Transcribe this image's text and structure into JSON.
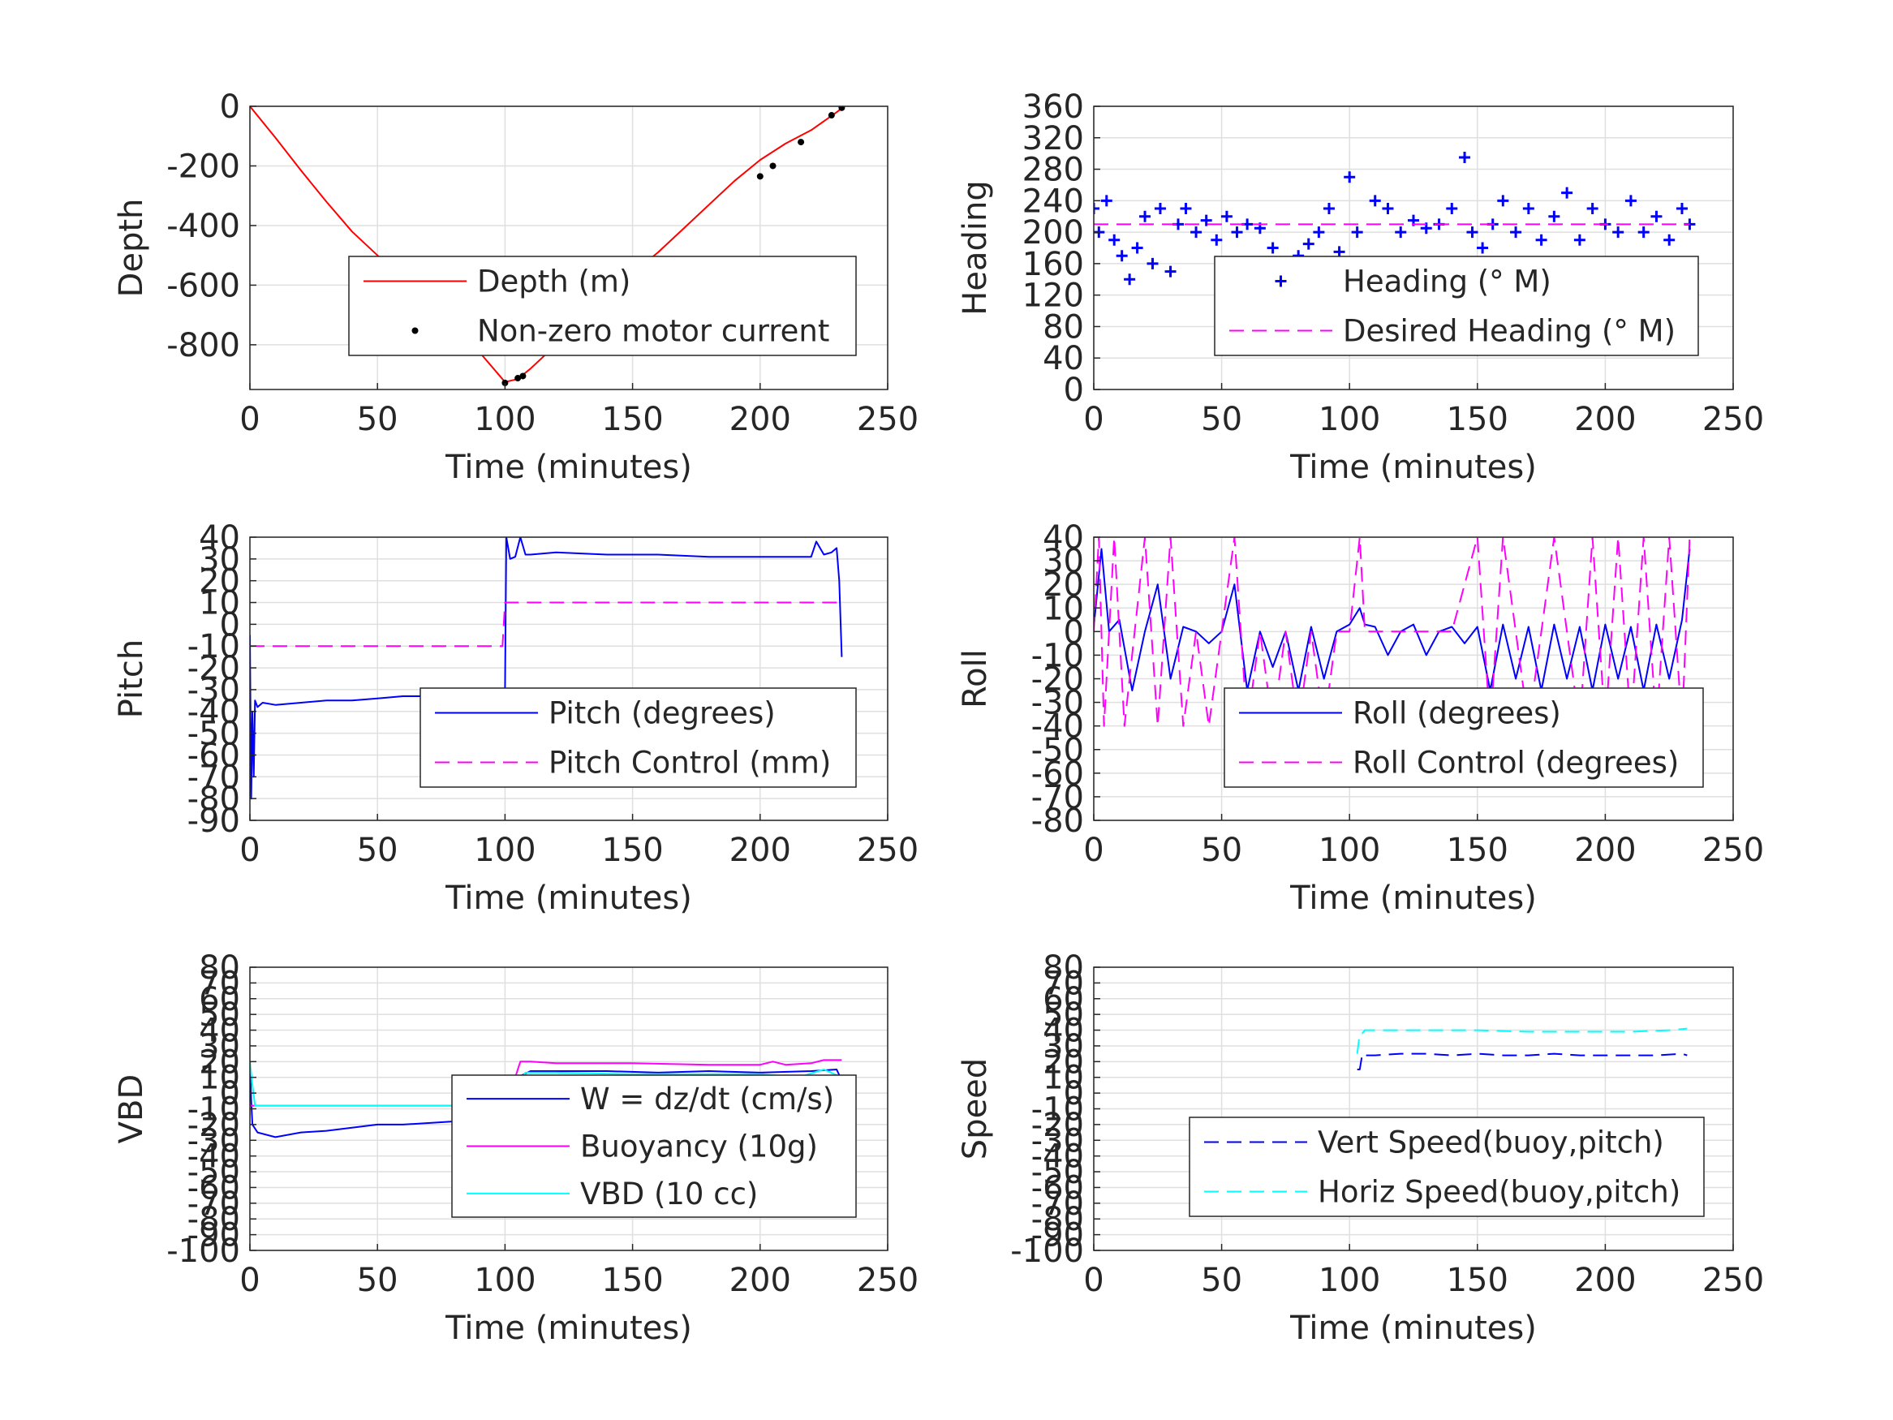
{
  "chart_data": [
    {
      "id": "depth",
      "type": "line",
      "xlabel": "Time (minutes)",
      "ylabel": "Depth",
      "xlim": [
        0,
        250
      ],
      "ylim": [
        -950,
        0
      ],
      "xticks": [
        0,
        50,
        100,
        150,
        200,
        250
      ],
      "yticks": [
        0,
        -200,
        -400,
        -600,
        -800
      ],
      "grid": true,
      "legend": {
        "placement": "center-right",
        "entries": [
          "Depth (m)",
          "Non-zero motor current"
        ]
      },
      "series": [
        {
          "name": "Depth (m)",
          "style": "line",
          "color": "#ff0000",
          "x": [
            0,
            10,
            20,
            30,
            40,
            50,
            60,
            70,
            80,
            90,
            100,
            105,
            110,
            120,
            130,
            140,
            150,
            160,
            170,
            180,
            190,
            200,
            210,
            220,
            230,
            233
          ],
          "y": [
            0,
            -105,
            -215,
            -320,
            -420,
            -500,
            -580,
            -660,
            -740,
            -825,
            -925,
            -915,
            -880,
            -800,
            -720,
            -640,
            -560,
            -490,
            -410,
            -330,
            -250,
            -180,
            -125,
            -80,
            -20,
            0
          ]
        },
        {
          "name": "Non-zero motor current",
          "style": "markers",
          "color": "#000000",
          "x": [
            100,
            105,
            107,
            200,
            205,
            216,
            228,
            232
          ],
          "y": [
            -928,
            -912,
            -905,
            -235,
            -200,
            -120,
            -30,
            -5
          ]
        }
      ]
    },
    {
      "id": "heading",
      "type": "line",
      "xlabel": "Time (minutes)",
      "ylabel": "Heading",
      "xlim": [
        0,
        250
      ],
      "ylim": [
        0,
        360
      ],
      "xticks": [
        0,
        50,
        100,
        150,
        200,
        250
      ],
      "yticks": [
        0,
        40,
        80,
        120,
        160,
        200,
        240,
        280,
        320,
        360
      ],
      "grid": true,
      "legend": {
        "placement": "lower-right",
        "entries": [
          "Heading (° M)",
          "Desired Heading (° M)"
        ]
      },
      "series": [
        {
          "name": "Heading (° M)",
          "style": "plus-markers",
          "color": "#0000ff",
          "x": [
            0,
            2,
            5,
            8,
            11,
            14,
            17,
            20,
            23,
            26,
            30,
            33,
            36,
            40,
            44,
            48,
            52,
            56,
            60,
            65,
            70,
            75,
            80,
            84,
            88,
            92,
            96,
            100,
            103,
            106,
            110,
            115,
            120,
            125,
            130,
            135,
            140,
            145,
            148,
            152,
            156,
            160,
            165,
            170,
            175,
            180,
            185,
            190,
            195,
            200,
            205,
            210,
            215,
            220,
            225,
            230,
            233
          ],
          "y": [
            230,
            200,
            240,
            190,
            170,
            140,
            180,
            220,
            160,
            230,
            150,
            210,
            230,
            200,
            215,
            190,
            220,
            200,
            210,
            205,
            180,
            160,
            170,
            185,
            200,
            230,
            175,
            270,
            200,
            160,
            240,
            230,
            200,
            215,
            205,
            210,
            230,
            295,
            200,
            180,
            210,
            240,
            200,
            230,
            190,
            220,
            250,
            190,
            230,
            210,
            200,
            240,
            200,
            220,
            190,
            230,
            210
          ]
        },
        {
          "name": "Desired Heading (° M)",
          "style": "dashed",
          "color": "#ff00ff",
          "x": [
            0,
            233
          ],
          "y": [
            210,
            210
          ]
        }
      ]
    },
    {
      "id": "pitch",
      "type": "line",
      "xlabel": "Time (minutes)",
      "ylabel": "Pitch",
      "xlim": [
        0,
        250
      ],
      "ylim": [
        -90,
        40
      ],
      "xticks": [
        0,
        50,
        100,
        150,
        200,
        250
      ],
      "yticks": [
        40,
        30,
        20,
        10,
        0,
        -10,
        -20,
        -30,
        -40,
        -50,
        -60,
        -70,
        -80,
        -90
      ],
      "grid": true,
      "legend": {
        "placement": "lower-right",
        "entries": [
          "Pitch (degrees)",
          "Pitch Control (mm)"
        ]
      },
      "series": [
        {
          "name": "Pitch (degrees)",
          "style": "line",
          "color": "#0000ff",
          "x": [
            0,
            0.5,
            1,
            1.5,
            2,
            3,
            5,
            10,
            20,
            30,
            40,
            50,
            60,
            70,
            80,
            90,
            99,
            100,
            100.5,
            102,
            104,
            106,
            108,
            110,
            120,
            140,
            160,
            180,
            200,
            210,
            220,
            222,
            225,
            228,
            230,
            231,
            232
          ],
          "y": [
            -5,
            -80,
            -40,
            -70,
            -35,
            -38,
            -36,
            -37,
            -36,
            -35,
            -35,
            -34,
            -33,
            -33,
            -32,
            -32,
            -32,
            -30,
            40,
            30,
            31,
            40,
            32,
            32,
            33,
            32,
            32,
            31,
            31,
            31,
            31,
            38,
            32,
            33,
            35,
            20,
            -15
          ]
        },
        {
          "name": "Pitch Control (mm)",
          "style": "dashed",
          "color": "#ff00ff",
          "x": [
            0,
            1,
            50,
            99,
            100,
            150,
            200,
            232
          ],
          "y": [
            -10,
            -10,
            -10,
            -10,
            10,
            10,
            10,
            10
          ]
        }
      ]
    },
    {
      "id": "roll",
      "type": "line",
      "xlabel": "Time (minutes)",
      "ylabel": "Roll",
      "xlim": [
        0,
        250
      ],
      "ylim": [
        -80,
        40
      ],
      "xticks": [
        0,
        50,
        100,
        150,
        200,
        250
      ],
      "yticks": [
        40,
        30,
        20,
        10,
        0,
        -10,
        -20,
        -30,
        -40,
        -50,
        -60,
        -70,
        -80
      ],
      "grid": true,
      "legend": {
        "placement": "lower-right",
        "entries": [
          "Roll (degrees)",
          "Roll Control (degrees)"
        ]
      },
      "series": [
        {
          "name": "Roll (degrees)",
          "style": "line",
          "color": "#0000ff",
          "x": [
            0,
            3,
            6,
            10,
            15,
            20,
            25,
            30,
            35,
            40,
            45,
            50,
            55,
            60,
            65,
            70,
            75,
            80,
            85,
            90,
            95,
            100,
            104,
            106,
            110,
            115,
            120,
            125,
            130,
            135,
            140,
            145,
            150,
            155,
            160,
            165,
            170,
            175,
            180,
            185,
            190,
            195,
            200,
            205,
            210,
            215,
            220,
            225,
            230,
            233
          ],
          "y": [
            2,
            35,
            0,
            5,
            -25,
            0,
            20,
            -20,
            2,
            0,
            -5,
            0,
            20,
            -25,
            0,
            -15,
            0,
            -25,
            2,
            -20,
            0,
            3,
            10,
            3,
            2,
            -10,
            0,
            3,
            -10,
            0,
            2,
            -5,
            2,
            -25,
            3,
            -20,
            2,
            -25,
            3,
            -20,
            2,
            -25,
            3,
            -20,
            2,
            -25,
            3,
            -20,
            5,
            35
          ]
        },
        {
          "name": "Roll Control (degrees)",
          "style": "dashed",
          "color": "#ff00ff",
          "x": [
            0,
            2,
            4,
            8,
            12,
            16,
            20,
            25,
            30,
            35,
            40,
            45,
            50,
            55,
            60,
            65,
            70,
            75,
            80,
            85,
            90,
            95,
            100,
            104,
            106,
            110,
            120,
            130,
            140,
            150,
            155,
            160,
            170,
            180,
            190,
            195,
            200,
            205,
            210,
            215,
            220,
            225,
            230,
            233
          ],
          "y": [
            0,
            40,
            -40,
            40,
            -40,
            0,
            40,
            -40,
            40,
            -40,
            0,
            -40,
            0,
            40,
            -40,
            0,
            -40,
            0,
            -40,
            0,
            -40,
            0,
            0,
            40,
            0,
            0,
            0,
            0,
            0,
            40,
            -40,
            40,
            -40,
            40,
            -40,
            40,
            -40,
            40,
            -40,
            40,
            -40,
            40,
            -40,
            40
          ]
        }
      ]
    },
    {
      "id": "vbd",
      "type": "line",
      "xlabel": "Time (minutes)",
      "ylabel": "VBD",
      "xlim": [
        0,
        250
      ],
      "ylim": [
        -100,
        80
      ],
      "xticks": [
        0,
        50,
        100,
        150,
        200,
        250
      ],
      "yticks": [
        80,
        70,
        60,
        50,
        40,
        30,
        20,
        10,
        0,
        -10,
        -20,
        -30,
        -40,
        -50,
        -60,
        -70,
        -80,
        -90,
        -100
      ],
      "grid": true,
      "legend": {
        "placement": "center-right",
        "entries": [
          "W = dz/dt (cm/s)",
          "Buoyancy (10g)",
          "VBD (10 cc)"
        ]
      },
      "series": [
        {
          "name": "W = dz/dt (cm/s)",
          "style": "line",
          "color": "#0000ff",
          "x": [
            0,
            0.5,
            1,
            3,
            10,
            20,
            30,
            40,
            50,
            60,
            70,
            80,
            90,
            100,
            101,
            103,
            105,
            110,
            120,
            140,
            160,
            180,
            200,
            220,
            230,
            232
          ],
          "y": [
            20,
            -5,
            -20,
            -25,
            -28,
            -25,
            -24,
            -22,
            -20,
            -20,
            -19,
            -18,
            -17,
            -15,
            4,
            5,
            10,
            14,
            14,
            14,
            13,
            14,
            13,
            14,
            15,
            8
          ]
        },
        {
          "name": "Buoyancy (10g)",
          "style": "line",
          "color": "#ff00ff",
          "x": [
            0,
            100,
            104,
            106,
            110,
            120,
            150,
            180,
            200,
            205,
            210,
            220,
            225,
            232
          ],
          "y": [
            -8,
            -8,
            10,
            20,
            20,
            19,
            19,
            18,
            18,
            20,
            18,
            19,
            21,
            21
          ]
        },
        {
          "name": "VBD (10 cc)",
          "style": "line",
          "color": "#00ffff",
          "x": [
            0,
            1,
            2,
            3,
            100,
            102,
            104,
            106,
            108,
            120,
            150,
            200,
            215,
            225,
            232
          ],
          "y": [
            20,
            5,
            -8,
            -8,
            -8,
            5,
            8,
            8,
            13,
            13,
            12,
            12,
            10,
            15,
            10
          ]
        }
      ]
    },
    {
      "id": "speed",
      "type": "line",
      "xlabel": "Time (minutes)",
      "ylabel": "Speed",
      "xlim": [
        0,
        250
      ],
      "ylim": [
        -100,
        80
      ],
      "xticks": [
        0,
        50,
        100,
        150,
        200,
        250
      ],
      "yticks": [
        80,
        70,
        60,
        50,
        40,
        30,
        20,
        10,
        0,
        -10,
        -20,
        -30,
        -40,
        -50,
        -60,
        -70,
        -80,
        -90,
        -100
      ],
      "grid": true,
      "legend": {
        "placement": "lower-right",
        "entries": [
          "Vert Speed(buoy,pitch)",
          "Horiz Speed(buoy,pitch)"
        ]
      },
      "series": [
        {
          "name": "Vert Speed(buoy,pitch)",
          "style": "dashed",
          "color": "#0000ff",
          "x": [
            103,
            104,
            105,
            106,
            110,
            120,
            130,
            140,
            150,
            160,
            170,
            180,
            190,
            200,
            210,
            220,
            230,
            232
          ],
          "y": [
            15,
            15,
            25,
            24,
            24,
            25,
            25,
            24,
            25,
            24,
            24,
            25,
            24,
            24,
            24,
            24,
            25,
            24
          ]
        },
        {
          "name": "Horiz Speed(buoy,pitch)",
          "style": "dashed",
          "color": "#00ffff",
          "x": [
            103,
            104,
            105,
            106,
            110,
            130,
            150,
            170,
            190,
            210,
            225,
            232
          ],
          "y": [
            25,
            38,
            38,
            40,
            40,
            40,
            40,
            39,
            39,
            39,
            40,
            41
          ]
        }
      ]
    }
  ]
}
